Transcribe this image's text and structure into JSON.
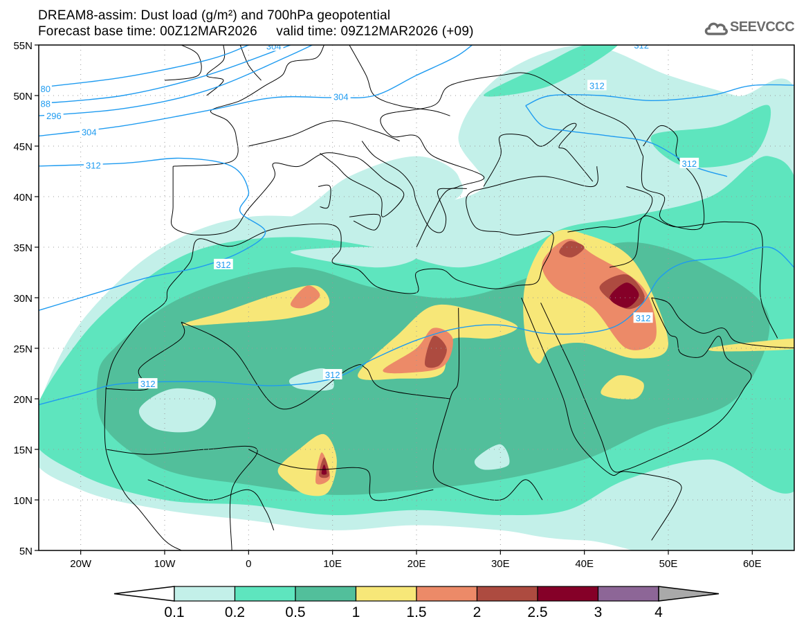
{
  "header": {
    "title": "DREAM8-assim: Dust load (g/m²) and 700hPa geopotential",
    "subtitle": "Forecast base time: 00Z12MAR2026     valid time: 09Z12MAR2026 (+09)",
    "logo_text": "SEEVCCC",
    "logo_icon": "cloud-icon"
  },
  "map": {
    "lat_labels": [
      "5N",
      "10N",
      "15N",
      "20N",
      "25N",
      "30N",
      "35N",
      "40N",
      "45N",
      "50N",
      "55N"
    ],
    "lat_values": [
      5,
      10,
      15,
      20,
      25,
      30,
      35,
      40,
      45,
      50,
      55
    ],
    "lon_labels": [
      "20W",
      "10W",
      "0",
      "10E",
      "20E",
      "30E",
      "40E",
      "50E",
      "60E"
    ],
    "lon_values": [
      -20,
      -10,
      0,
      10,
      20,
      30,
      40,
      50,
      60
    ],
    "extent": {
      "lon": [
        -25,
        65
      ],
      "lat": [
        5,
        55
      ]
    },
    "contour_labels": [
      "80",
      "88",
      "296",
      "304",
      "312",
      "304",
      "304",
      "312",
      "312",
      "312",
      "312",
      "312",
      "312"
    ]
  },
  "colorbar": {
    "labels": [
      "0.1",
      "0.2",
      "0.5",
      "1",
      "1.5",
      "2",
      "2.5",
      "3",
      "4"
    ],
    "colors": [
      "#c3f0e9",
      "#5ee5be",
      "#52bf9b",
      "#f7e778",
      "#ec8a68",
      "#ad4b40",
      "#850028",
      "#8d6697"
    ],
    "under_color": "#ffffff",
    "over_color": "#a9a9a9",
    "contour_color": "#1e9bf0"
  }
}
